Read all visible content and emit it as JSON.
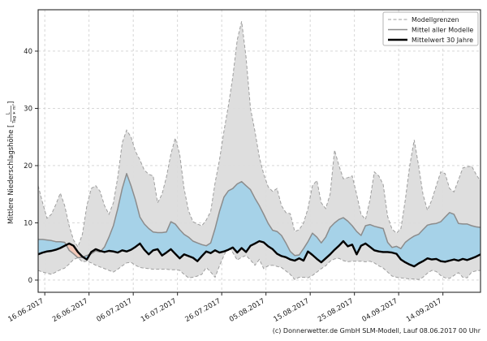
{
  "footer": {
    "credit": "(c) Donnerwetter.de GmbH SLM-Modell, Lauf 08.06.2017 00 Uhr"
  },
  "chart_data": {
    "type": "line",
    "title": "",
    "xlabel": "",
    "ylabel": "Mittlere Niederschlagshöhe [L/(Tag ∗ m²)]",
    "ylabel_text": "Mittlere Niederschlagshöhe [",
    "ylabel_frac_num": "L",
    "ylabel_frac_den": "Tag ∗ m²",
    "ylabel_close": "]",
    "grid": true,
    "legend_position": "upper right",
    "legend": [
      {
        "label": "Modellgrenzen",
        "line": "dashed-gray"
      },
      {
        "label": "Mittel aller Modelle",
        "line": "solid-gray"
      },
      {
        "label": "Mittelwert 30 Jahre",
        "line": "solid-black-thick"
      }
    ],
    "x_tick_labels": [
      "16.06.2017",
      "26.06.2017",
      "06.07.2017",
      "16.07.2017",
      "26.07.2017",
      "05.08.2017",
      "15.08.2017",
      "25.08.2017",
      "04.09.2017",
      "14.09.2017"
    ],
    "x_tick_days": [
      1.5,
      11.5,
      21.5,
      31.5,
      41.5,
      51.5,
      61.5,
      71.5,
      81.5,
      91.5
    ],
    "x_total_days": 100,
    "y_ticks": [
      0,
      10,
      20,
      30,
      40
    ],
    "ylim": [
      -2.13,
      47.23
    ],
    "colors": {
      "band_fill": "#dcdcdc",
      "band_edge": "#9e9e9e",
      "wet_fill": "#a6d2e8",
      "dry_fill": "#f3c9b9",
      "mean_line": "#8c8c8c",
      "clim_line": "#000000",
      "grid": "#d2d2d2",
      "spine": "#262626"
    },
    "series": [
      {
        "name": "Modellgrenzen (Maximum)",
        "role": "upper",
        "values": [
          16.5,
          13.5,
          10.8,
          11.5,
          13.2,
          15.2,
          13.0,
          9.5,
          7.0,
          5.8,
          8.0,
          13.0,
          16.0,
          16.5,
          15.5,
          13.0,
          11.5,
          13.5,
          18.0,
          24.0,
          26.2,
          25.0,
          22.5,
          21.0,
          19.2,
          18.5,
          18.2,
          13.5,
          15.0,
          18.0,
          22.0,
          24.8,
          22.0,
          16.0,
          12.1,
          10.2,
          9.8,
          9.5,
          10.5,
          12.0,
          17.0,
          21.0,
          26.0,
          30.5,
          35.5,
          42.0,
          45.2,
          39.0,
          30.0,
          26.0,
          21.5,
          18.5,
          16.3,
          15.5,
          16.0,
          13.0,
          11.8,
          11.6,
          8.5,
          8.8,
          10.0,
          12.5,
          16.5,
          17.4,
          13.5,
          12.5,
          15.0,
          22.7,
          20.0,
          17.7,
          17.9,
          18.2,
          15.0,
          11.5,
          10.6,
          14.0,
          18.9,
          18.2,
          16.7,
          11.1,
          8.9,
          8.2,
          9.0,
          14.0,
          20.0,
          24.5,
          20.0,
          15.0,
          12.2,
          14.0,
          16.5,
          18.9,
          18.6,
          16.0,
          15.4,
          17.5,
          19.6,
          19.8,
          19.9,
          18.5,
          17.3
        ]
      },
      {
        "name": "Modellgrenzen (Minimum)",
        "role": "lower",
        "values": [
          1.7,
          1.4,
          1.2,
          1.0,
          1.4,
          1.8,
          2.1,
          2.8,
          3.6,
          3.9,
          3.2,
          3.3,
          3.0,
          2.6,
          2.3,
          2.0,
          1.7,
          1.4,
          1.9,
          2.5,
          3.0,
          3.1,
          2.6,
          2.2,
          2.1,
          2.0,
          1.9,
          1.9,
          1.9,
          1.9,
          1.8,
          1.8,
          1.7,
          1.0,
          0.4,
          0.5,
          0.7,
          1.0,
          2.2,
          1.4,
          0.5,
          2.5,
          4.3,
          5.9,
          4.8,
          3.5,
          4.0,
          4.3,
          3.5,
          2.6,
          3.6,
          2.0,
          2.5,
          2.6,
          2.4,
          2.2,
          1.6,
          1.0,
          0.1,
          0.5,
          0.5,
          0.4,
          0.8,
          1.4,
          2.0,
          2.5,
          3.3,
          3.7,
          3.8,
          3.4,
          3.2,
          3.3,
          3.3,
          3.3,
          3.2,
          3.3,
          3.0,
          2.5,
          2.1,
          1.4,
          0.7,
          0.5,
          0.4,
          0.3,
          0.2,
          0.2,
          0.1,
          0.5,
          1.2,
          1.7,
          1.5,
          0.8,
          0.4,
          0.3,
          0.8,
          1.3,
          0.5,
          0.4,
          1.4,
          1.6,
          1.7
        ]
      },
      {
        "name": "Mittel aller Modelle",
        "role": "mean",
        "values": [
          7.1,
          7.1,
          7.0,
          6.9,
          6.7,
          6.7,
          6.6,
          5.2,
          4.6,
          3.9,
          4.0,
          4.3,
          4.6,
          5.1,
          4.9,
          5.8,
          7.5,
          9.5,
          12.5,
          16.0,
          18.6,
          16.5,
          14.0,
          11.0,
          9.8,
          9.0,
          8.4,
          8.3,
          8.3,
          8.4,
          10.2,
          9.8,
          8.8,
          8.0,
          7.5,
          6.8,
          6.5,
          6.2,
          6.0,
          6.5,
          9.0,
          12.0,
          14.5,
          15.6,
          16.0,
          16.8,
          17.2,
          16.5,
          15.8,
          14.3,
          13.0,
          11.5,
          9.9,
          8.7,
          8.5,
          7.8,
          6.5,
          5.0,
          4.3,
          4.4,
          5.5,
          6.7,
          8.2,
          7.5,
          6.5,
          7.5,
          9.2,
          10.0,
          10.6,
          10.9,
          10.3,
          9.5,
          8.5,
          7.8,
          9.5,
          9.7,
          9.4,
          9.2,
          9.0,
          6.6,
          5.7,
          5.9,
          5.5,
          6.6,
          7.2,
          7.7,
          8.0,
          8.8,
          9.6,
          9.8,
          9.9,
          10.2,
          11.0,
          11.8,
          11.5,
          9.9,
          9.8,
          9.8,
          9.5,
          9.3,
          9.2
        ]
      },
      {
        "name": "Mittelwert 30 Jahre",
        "role": "climate",
        "values": [
          4.5,
          4.8,
          5.0,
          5.1,
          5.3,
          5.6,
          6.0,
          6.4,
          6.0,
          4.9,
          4.1,
          3.6,
          4.9,
          5.4,
          5.1,
          4.9,
          5.1,
          5.0,
          4.8,
          5.2,
          5.0,
          5.3,
          5.8,
          6.4,
          5.3,
          4.5,
          5.2,
          5.4,
          4.3,
          4.8,
          5.4,
          4.6,
          3.8,
          4.5,
          4.2,
          3.9,
          3.3,
          4.2,
          5.0,
          4.7,
          5.2,
          4.8,
          5.0,
          5.3,
          5.7,
          4.8,
          5.6,
          4.9,
          6.0,
          6.4,
          6.8,
          6.6,
          5.9,
          5.4,
          4.6,
          4.2,
          4.0,
          3.6,
          3.4,
          3.8,
          3.4,
          5.0,
          4.4,
          3.7,
          3.1,
          3.8,
          4.5,
          5.3,
          6.0,
          6.8,
          5.9,
          6.2,
          4.5,
          6.0,
          6.4,
          5.8,
          5.2,
          5.0,
          4.9,
          4.9,
          4.8,
          4.6,
          3.6,
          3.1,
          2.7,
          2.4,
          2.9,
          3.3,
          3.8,
          3.6,
          3.7,
          3.3,
          3.2,
          3.4,
          3.6,
          3.4,
          3.7,
          3.5,
          3.8,
          4.1,
          4.5
        ]
      }
    ]
  }
}
